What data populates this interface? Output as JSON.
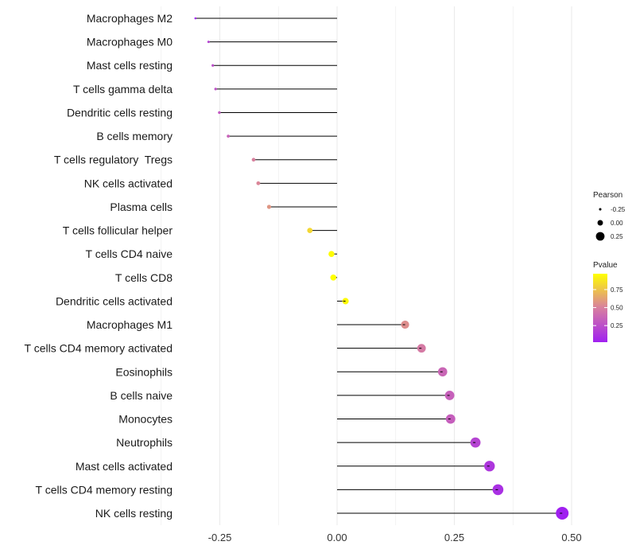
{
  "chart_data": {
    "type": "lollipop",
    "xlabel": "",
    "ylabel": "",
    "xlim": [
      -0.31,
      0.52
    ],
    "x_ticks": [
      -0.25,
      0.0,
      0.25,
      0.5
    ],
    "x_tick_labels": [
      "-0.25",
      "0.00",
      "0.25",
      "0.50"
    ],
    "grid": true,
    "legend_position": "right",
    "colors": {
      "low": "#a020f0",
      "mid": "#d87fa0",
      "high": "#ffff00",
      "stem": "#000000",
      "grid": "#ebebeb"
    },
    "points": [
      {
        "label": "Macrophages M2",
        "pearson": -0.302,
        "pvalue": 0.03
      },
      {
        "label": "Macrophages M0",
        "pearson": -0.274,
        "pvalue": 0.2
      },
      {
        "label": "Mast cells resting",
        "pearson": -0.265,
        "pvalue": 0.25
      },
      {
        "label": "T cells gamma delta",
        "pearson": -0.259,
        "pvalue": 0.27
      },
      {
        "label": "Dendritic cells resting",
        "pearson": -0.251,
        "pvalue": 0.3
      },
      {
        "label": "B cells memory",
        "pearson": -0.232,
        "pvalue": 0.35
      },
      {
        "label": "T cells regulatory  Tregs",
        "pearson": -0.178,
        "pvalue": 0.5
      },
      {
        "label": "NK cells activated",
        "pearson": -0.168,
        "pvalue": 0.52
      },
      {
        "label": "Plasma cells",
        "pearson": -0.145,
        "pvalue": 0.58
      },
      {
        "label": "T cells follicular helper",
        "pearson": -0.058,
        "pvalue": 0.82
      },
      {
        "label": "T cells CD4 naive",
        "pearson": -0.012,
        "pvalue": 0.96
      },
      {
        "label": "T cells CD8",
        "pearson": -0.008,
        "pvalue": 0.97
      },
      {
        "label": "Dendritic cells activated",
        "pearson": 0.018,
        "pvalue": 0.95
      },
      {
        "label": "Macrophages M1",
        "pearson": 0.145,
        "pvalue": 0.55
      },
      {
        "label": "T cells CD4 memory activated",
        "pearson": 0.18,
        "pvalue": 0.47
      },
      {
        "label": "Eosinophils",
        "pearson": 0.225,
        "pvalue": 0.37
      },
      {
        "label": "B cells naive",
        "pearson": 0.24,
        "pvalue": 0.34
      },
      {
        "label": "Monocytes",
        "pearson": 0.242,
        "pvalue": 0.33
      },
      {
        "label": "Neutrophils",
        "pearson": 0.295,
        "pvalue": 0.2
      },
      {
        "label": "Mast cells activated",
        "pearson": 0.325,
        "pvalue": 0.13
      },
      {
        "label": "T cells CD4 memory resting",
        "pearson": 0.343,
        "pvalue": 0.1
      },
      {
        "label": "NK cells resting",
        "pearson": 0.48,
        "pvalue": 0.02
      }
    ],
    "legend_size": {
      "title": "Pearson",
      "entries": [
        {
          "label": "-0.25",
          "value": -0.25
        },
        {
          "label": "0.00",
          "value": 0.0
        },
        {
          "label": "0.25",
          "value": 0.25
        }
      ]
    },
    "legend_color": {
      "title": "Pvalue",
      "range": [
        0.02,
        0.97
      ],
      "entries": [
        {
          "label": "0.75",
          "value": 0.75
        },
        {
          "label": "0.50",
          "value": 0.5
        },
        {
          "label": "0.25",
          "value": 0.25
        }
      ]
    }
  }
}
